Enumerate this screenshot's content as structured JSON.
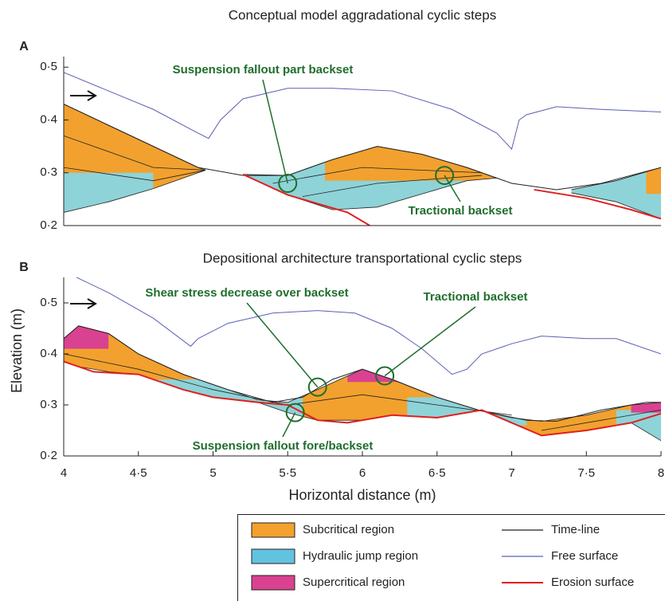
{
  "chart_data": [
    {
      "type": "line",
      "panel": "A",
      "title": "Conceptual model aggradational cyclic steps",
      "xlim": [
        4,
        8
      ],
      "ylim": [
        0.2,
        0.52
      ],
      "yticks": [
        {
          "value": 0.2,
          "label": "0·2"
        },
        {
          "value": 0.3,
          "label": "0·3"
        },
        {
          "value": 0.4,
          "label": "0·4"
        },
        {
          "value": 0.5,
          "label": "0·5"
        }
      ],
      "bodies": [
        {
          "x": [
            4,
            4.3,
            4.6,
            4.9,
            4.95
          ],
          "top": [
            0.43,
            0.39,
            0.35,
            0.31,
            0.305
          ],
          "base": [
            0.225,
            0.245,
            0.27,
            0.3,
            0.305
          ],
          "zones": [
            {
              "x": [
                4,
                4.95
              ],
              "y": [
                0.2,
                0.45
              ],
              "color": "#f2a12e"
            },
            {
              "x": [
                4,
                4.6
              ],
              "y": [
                0.2,
                0.3
              ],
              "color": "#8ed3d8"
            }
          ]
        },
        {
          "x": [
            5.2,
            5.5,
            5.8,
            6.1,
            6.4,
            6.7,
            6.9
          ],
          "top": [
            0.297,
            0.295,
            0.325,
            0.35,
            0.335,
            0.31,
            0.29
          ],
          "base": [
            0.297,
            0.258,
            0.23,
            0.235,
            0.26,
            0.285,
            0.29
          ],
          "zones": [
            {
              "x": [
                5.2,
                6.9
              ],
              "y": [
                0.2,
                0.36
              ],
              "color": "#8ed3d8"
            },
            {
              "x": [
                5.75,
                6.9
              ],
              "y": [
                0.285,
                0.36
              ],
              "color": "#f2a12e"
            }
          ]
        },
        {
          "x": [
            7.4,
            7.7,
            8
          ],
          "top": [
            0.268,
            0.285,
            0.31
          ],
          "base": [
            0.262,
            0.245,
            0.213
          ],
          "zones": [
            {
              "x": [
                7.4,
                8
              ],
              "y": [
                0.2,
                0.32
              ],
              "color": "#8ed3d8"
            },
            {
              "x": [
                7.9,
                8
              ],
              "y": [
                0.26,
                0.32
              ],
              "color": "#f2a12e"
            }
          ]
        }
      ],
      "timelines": [
        {
          "x": [
            4,
            4.6,
            4.95
          ],
          "values": [
            0.37,
            0.31,
            0.305
          ]
        },
        {
          "x": [
            4,
            4.6,
            4.95
          ],
          "values": [
            0.31,
            0.285,
            0.305
          ]
        },
        {
          "x": [
            5.4,
            6,
            6.8
          ],
          "values": [
            0.28,
            0.31,
            0.3
          ]
        },
        {
          "x": [
            5.6,
            6.1,
            6.8
          ],
          "values": [
            0.255,
            0.28,
            0.295
          ]
        }
      ],
      "series": [
        {
          "color": "#5b5fb5",
          "width": 1,
          "x": [
            4,
            4.3,
            4.6,
            4.9,
            4.97,
            5.05,
            5.2,
            5.5,
            5.8,
            6.2,
            6.6,
            6.9,
            7,
            7.05,
            7.1,
            7.3,
            7.6,
            8
          ],
          "values": [
            0.49,
            0.455,
            0.42,
            0.375,
            0.365,
            0.4,
            0.44,
            0.46,
            0.46,
            0.455,
            0.42,
            0.375,
            0.345,
            0.4,
            0.41,
            0.425,
            0.42,
            0.415
          ]
        },
        {
          "color": "#222222",
          "width": 1,
          "x": [
            4,
            4.3,
            4.6,
            4.9,
            5.2,
            5.5,
            5.8,
            6.1,
            6.4,
            6.7,
            7,
            7.3,
            7.6,
            8
          ],
          "values": [
            0.43,
            0.39,
            0.35,
            0.31,
            0.295,
            0.295,
            0.325,
            0.35,
            0.335,
            0.31,
            0.28,
            0.268,
            0.28,
            0.31
          ]
        },
        {
          "color": "#e02020",
          "width": 2,
          "x": [
            5.2,
            5.5,
            5.9,
            6.05,
            null,
            7.15,
            7.5,
            7.8,
            8
          ],
          "values": [
            0.297,
            0.258,
            0.225,
            0.2,
            null,
            0.268,
            0.252,
            0.23,
            0.213
          ]
        }
      ],
      "annotations": [
        {
          "text": "Suspension fallout part backset",
          "x": 5.5,
          "y": 0.28
        },
        {
          "text": "Tractional backset",
          "x": 6.55,
          "y": 0.295
        }
      ]
    },
    {
      "type": "line",
      "panel": "B",
      "title": "Depositional architecture transportational cyclic steps",
      "xlabel": "Horizontal distance (m)",
      "ylabel": "Elevation (m)",
      "xlim": [
        4,
        8
      ],
      "ylim": [
        0.2,
        0.55
      ],
      "xticks": [
        4,
        {
          "value": 4.5,
          "label": "4·5"
        },
        5,
        {
          "value": 5.5,
          "label": "5·5"
        },
        6,
        {
          "value": 6.5,
          "label": "6·5"
        },
        7,
        {
          "value": 7.5,
          "label": "7·5"
        },
        8
      ],
      "yticks": [
        {
          "value": 0.2,
          "label": "0·2"
        },
        {
          "value": 0.3,
          "label": "0·3"
        },
        {
          "value": 0.4,
          "label": "0·4"
        },
        {
          "value": 0.5,
          "label": "0·5"
        }
      ],
      "bodies": [
        {
          "x": [
            4,
            4.1,
            4.3,
            4.5,
            4.8,
            5,
            5.3,
            5.5,
            5.7,
            6,
            6.2,
            6.5,
            6.8,
            7,
            7.2,
            7.5,
            7.8,
            8
          ],
          "top": [
            0.43,
            0.455,
            0.44,
            0.4,
            0.36,
            0.34,
            0.31,
            0.305,
            0.33,
            0.37,
            0.35,
            0.315,
            0.288,
            0.275,
            0.268,
            0.28,
            0.3,
            0.305
          ],
          "base": [
            0.385,
            0.375,
            0.365,
            0.36,
            0.33,
            0.315,
            0.305,
            0.285,
            0.27,
            0.27,
            0.28,
            0.275,
            0.29,
            0.265,
            0.24,
            0.25,
            0.265,
            0.23
          ],
          "zones": [
            {
              "x": [
                4,
                8
              ],
              "y": [
                0.2,
                0.47
              ],
              "color": "#f2a12e"
            },
            {
              "x": [
                4.55,
                5.6
              ],
              "y": [
                0.26,
                0.35
              ],
              "color": "#8ed3d8"
            },
            {
              "x": [
                6.3,
                7.1
              ],
              "y": [
                0.26,
                0.315
              ],
              "color": "#8ed3d8"
            },
            {
              "x": [
                7.7,
                8
              ],
              "y": [
                0.22,
                0.29
              ],
              "color": "#8ed3d8"
            },
            {
              "x": [
                4,
                4.3
              ],
              "y": [
                0.41,
                0.47
              ],
              "color": "#d94290"
            },
            {
              "x": [
                5.9,
                6.3
              ],
              "y": [
                0.345,
                0.38
              ],
              "color": "#d94290"
            },
            {
              "x": [
                7.8,
                8
              ],
              "y": [
                0.285,
                0.31
              ],
              "color": "#d94290"
            }
          ]
        }
      ],
      "timelines": [
        {
          "x": [
            4,
            4.5,
            5,
            5.5
          ],
          "values": [
            0.4,
            0.37,
            0.33,
            0.3
          ]
        },
        {
          "x": [
            5.5,
            6,
            6.5,
            7
          ],
          "values": [
            0.3,
            0.32,
            0.3,
            0.28
          ]
        },
        {
          "x": [
            7.2,
            7.6,
            8
          ],
          "values": [
            0.25,
            0.27,
            0.29
          ]
        }
      ],
      "series": [
        {
          "color": "#5b5fb5",
          "width": 1,
          "x": [
            4.05,
            4.3,
            4.6,
            4.85,
            4.9,
            5.1,
            5.4,
            5.7,
            5.95,
            6.2,
            6.4,
            6.6,
            6.7,
            6.8,
            7,
            7.2,
            7.5,
            7.7,
            8
          ],
          "values": [
            0.555,
            0.52,
            0.47,
            0.415,
            0.43,
            0.46,
            0.48,
            0.485,
            0.48,
            0.45,
            0.41,
            0.36,
            0.37,
            0.4,
            0.42,
            0.435,
            0.43,
            0.43,
            0.4
          ]
        },
        {
          "color": "#222222",
          "width": 1,
          "x": [
            4,
            4.1,
            4.3,
            4.5,
            4.8,
            5.1,
            5.4,
            5.6,
            5.8,
            6,
            6.2,
            6.5,
            6.8,
            7.1,
            7.3,
            7.6,
            7.9,
            8
          ],
          "values": [
            0.43,
            0.455,
            0.44,
            0.4,
            0.36,
            0.33,
            0.305,
            0.315,
            0.35,
            0.37,
            0.35,
            0.315,
            0.288,
            0.27,
            0.268,
            0.29,
            0.305,
            0.305
          ]
        },
        {
          "color": "#e02020",
          "width": 2,
          "x": [
            4,
            4.2,
            4.5,
            4.8,
            5,
            5.3,
            5.5,
            5.7,
            5.9,
            6.2,
            6.5,
            6.7,
            6.8,
            7,
            7.2,
            7.5,
            7.8,
            8
          ],
          "values": [
            0.385,
            0.365,
            0.36,
            0.33,
            0.315,
            0.305,
            0.3,
            0.27,
            0.265,
            0.28,
            0.275,
            0.285,
            0.29,
            0.265,
            0.24,
            0.25,
            0.265,
            0.283
          ]
        }
      ],
      "annotations": [
        {
          "text": "Shear stress decrease over backset",
          "x": 5.7,
          "y": 0.335
        },
        {
          "text": "Tractional backset",
          "x": 6.15,
          "y": 0.357
        },
        {
          "text": "Suspension fallout fore/backset",
          "x": 5.55,
          "y": 0.285
        }
      ]
    }
  ],
  "legend": {
    "items": [
      {
        "label": "Subcritical region",
        "color": "#f2a12e",
        "shape": "patch"
      },
      {
        "label": "Hydraulic jump region",
        "color": "#62c3e0",
        "shape": "patch"
      },
      {
        "label": "Supercritical region",
        "color": "#d94290",
        "shape": "patch"
      },
      {
        "label": "Time-line",
        "color": "#222222",
        "shape": "line"
      },
      {
        "label": "Free surface",
        "color": "#5b5fb5",
        "shape": "line"
      },
      {
        "label": "Erosion surface",
        "color": "#e02020",
        "shape": "line"
      }
    ]
  }
}
